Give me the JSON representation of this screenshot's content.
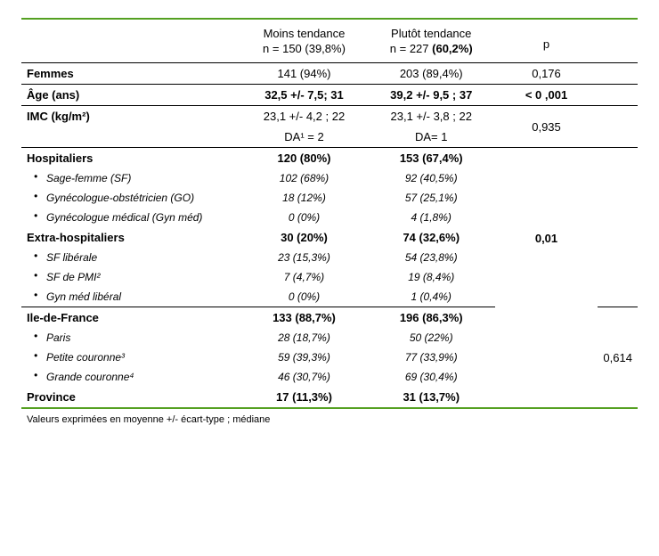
{
  "border_color": "#54a021",
  "thin_border_color": "#000000",
  "header": {
    "group1_line1": "Moins tendance",
    "group1_line2": "n = 150  (39,8%)",
    "group2_line1": "Plutôt tendance",
    "group2_line2": "n = 227 (60,2%)",
    "p_label": "p",
    "group2_line2_bold_part": "(60,2%)"
  },
  "rows": {
    "femmes": {
      "label": "Femmes",
      "g1": "141 (94%)",
      "g2": "203 (89,4%)",
      "p": "0,176"
    },
    "age": {
      "label": "Âge (ans)",
      "g1": "32,5 +/- 7,5;  31",
      "g2": "39,2 +/- 9,5 ; 37",
      "p": "< 0 ,001"
    },
    "imc": {
      "label": "IMC (kg/m²)",
      "g1_l1": "23,1 +/- 4,2 ; 22",
      "g1_l2": "DA¹ = 2",
      "g2_l1": "23,1 +/- 3,8 ; 22",
      "g2_l2": "DA= 1",
      "p": "0,935"
    },
    "hospitaliers": {
      "label": "Hospitaliers",
      "g1": "120 (80%)",
      "g2": "153 (67,4%)"
    },
    "sf": {
      "label": "Sage-femme (SF)",
      "g1": "102 (68%)",
      "g2": "92 (40,5%)"
    },
    "go": {
      "label": "Gynécologue-obstétricien (GO)",
      "g1": "18 (12%)",
      "g2": "57 (25,1%)"
    },
    "gynmed": {
      "label": "Gynécologue médical (Gyn méd)",
      "g1": "0 (0%)",
      "g2": "4 (1,8%)"
    },
    "extra": {
      "label": "Extra-hospitaliers",
      "g1": "30 (20%)",
      "g2": "74 (32,6%)"
    },
    "sflib": {
      "label": "SF libérale",
      "g1": "23 (15,3%)",
      "g2": "54 (23,8%)"
    },
    "sfpmi": {
      "label": "SF de PMI²",
      "g1": "7 (4,7%)",
      "g2": "19 (8,4%)"
    },
    "gynlib": {
      "label": "Gyn méd libéral",
      "g1": "0 (0%)",
      "g2": "1 (0,4%)"
    },
    "p_hosp": "0,01",
    "idf": {
      "label": "Ile-de-France",
      "g1": "133 (88,7%)",
      "g2": "196 (86,3%)"
    },
    "paris": {
      "label": "Paris",
      "g1": "28 (18,7%)",
      "g2": "50 (22%)"
    },
    "petite": {
      "label": "Petite couronne³",
      "g1": "59 (39,3%)",
      "g2": "77 (33,9%)"
    },
    "grande": {
      "label": "Grande couronne⁴",
      "g1": "46 (30,7%)",
      "g2": "69 (30,4%)"
    },
    "p_region": "0,614",
    "province": {
      "label": "Province",
      "g1": "17 (11,3%)",
      "g2": "31 (13,7%)"
    }
  },
  "footnote": "Valeurs exprimées en moyenne  +/- écart-type ; médiane"
}
